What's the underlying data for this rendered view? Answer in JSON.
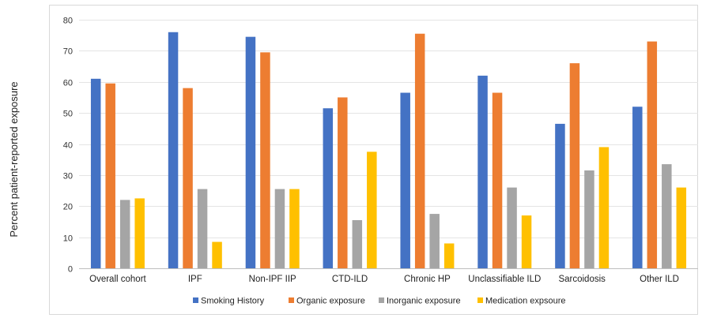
{
  "chart_data": {
    "type": "bar",
    "title": "",
    "xlabel": "",
    "ylabel": "Percent patient-reported exposure",
    "ylim": [
      0,
      80
    ],
    "yticks": [
      0,
      10,
      20,
      30,
      40,
      50,
      60,
      70,
      80
    ],
    "grid": true,
    "legend_position": "bottom",
    "categories": [
      "Overall cohort",
      "IPF",
      "Non-IPF IIP",
      "CTD-ILD",
      "Chronic HP",
      "Unclassifiable ILD",
      "Sarcoidosis",
      "Other ILD"
    ],
    "series": [
      {
        "name": "Smoking History",
        "color": "#4472C4",
        "values": [
          61,
          76,
          74.5,
          51.5,
          56.5,
          62,
          46.5,
          52
        ]
      },
      {
        "name": "Organic exposure",
        "color": "#ED7D31",
        "values": [
          59.5,
          58,
          69.5,
          55,
          75.5,
          56.5,
          66,
          73
        ]
      },
      {
        "name": "Inorganic exposure",
        "color": "#A5A5A5",
        "values": [
          22,
          25.5,
          25.5,
          15.5,
          17.5,
          26,
          31.5,
          33.5
        ]
      },
      {
        "name": "Medication expsoure",
        "color": "#FFC000",
        "values": [
          22.5,
          8.5,
          25.5,
          37.5,
          8,
          17,
          39,
          26
        ]
      }
    ]
  }
}
